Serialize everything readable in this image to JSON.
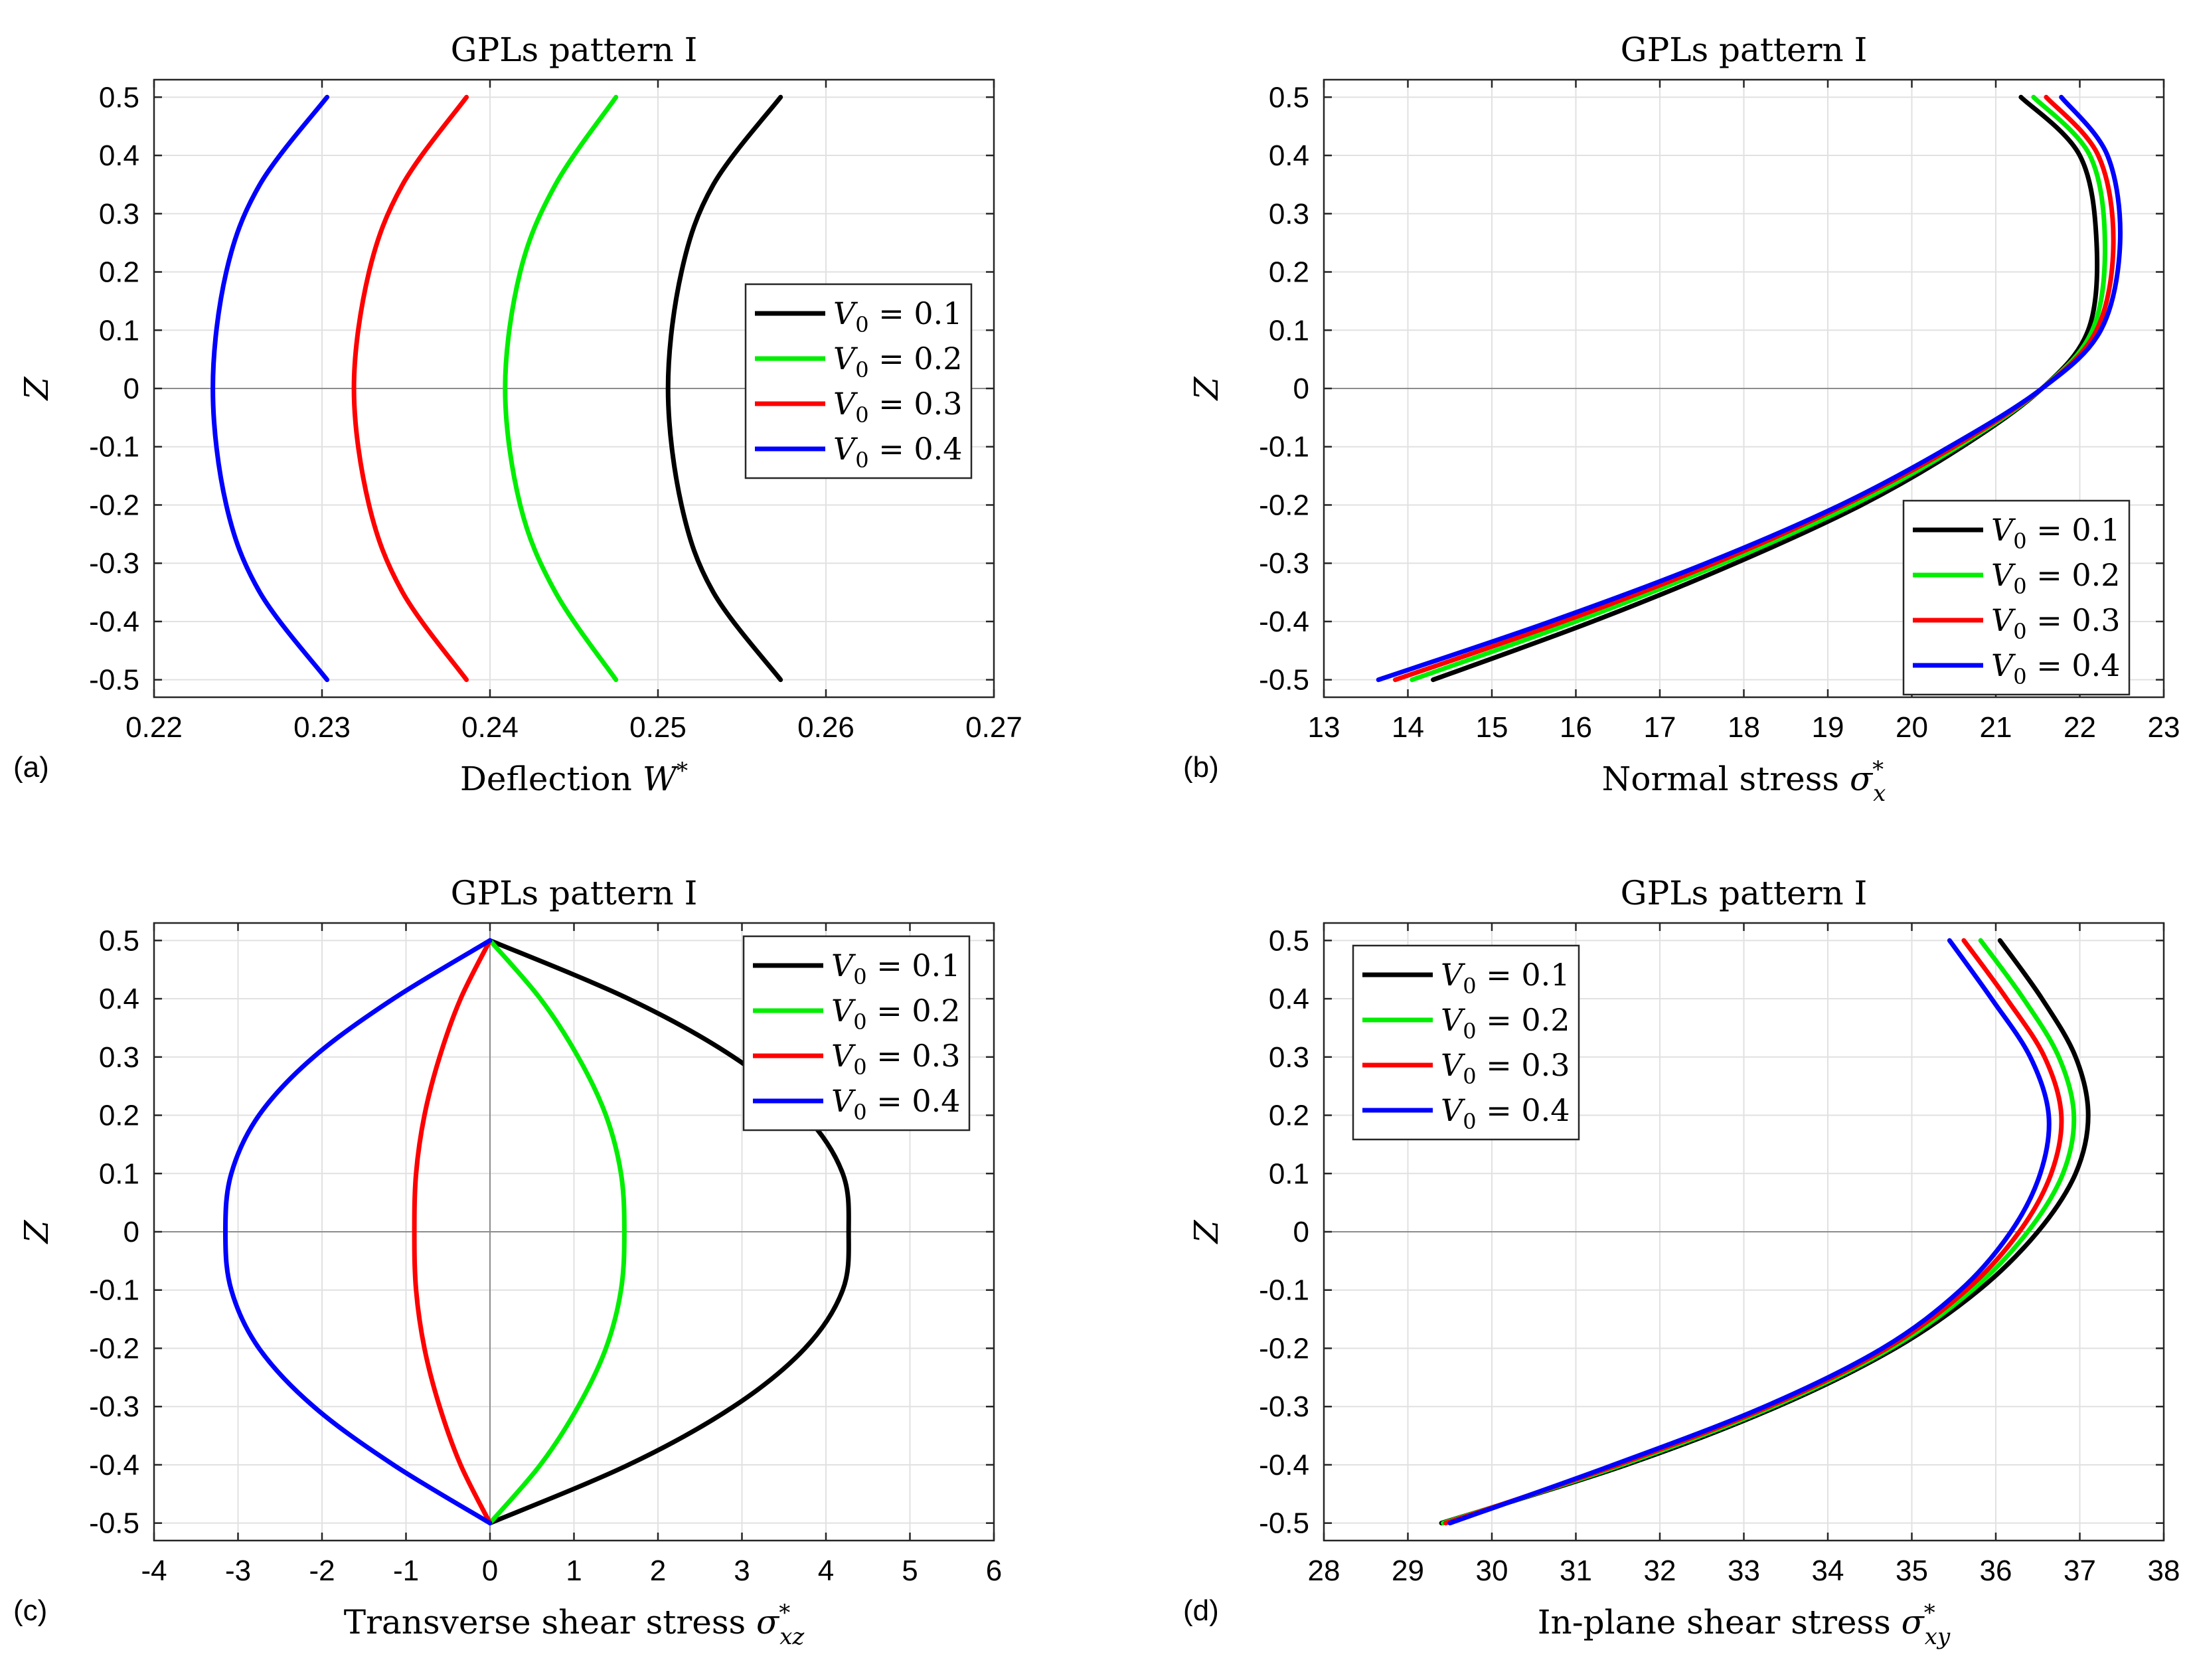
{
  "colors": {
    "black": "#000000",
    "green": "#00ee00",
    "red": "#ff0000",
    "blue": "#0000ff"
  },
  "chart_data": [
    {
      "id": "a",
      "type": "line",
      "title": "GPLs pattern I",
      "panel_label": "(a)",
      "xlabel": "Deflection",
      "xlabel_symbol": "W*",
      "ylabel": "Z",
      "xlim": [
        0.22,
        0.27
      ],
      "ylim": [
        -0.53,
        0.53
      ],
      "xticks": [
        0.22,
        0.23,
        0.24,
        0.25,
        0.26,
        0.27
      ],
      "xtick_labels": [
        "0.22",
        "0.23",
        "0.24",
        "0.25",
        "0.26",
        "0.27"
      ],
      "yticks": [
        -0.5,
        -0.4,
        -0.3,
        -0.2,
        -0.1,
        0,
        0.1,
        0.2,
        0.3,
        0.4,
        0.5
      ],
      "ytick_labels": [
        "-0.5",
        "-0.4",
        "-0.3",
        "-0.2",
        "-0.1",
        "0",
        "0.1",
        "0.2",
        "0.3",
        "0.4",
        "0.5"
      ],
      "zero_line": "horizontal",
      "legend_position": "right-middle",
      "series": [
        {
          "name": "V0 = 0.1",
          "label": "V₀ = 0.1",
          "color": "#000000",
          "x": [
            0.2573,
            0.2533,
            0.2514,
            0.2506,
            0.2514,
            0.2533,
            0.2573
          ],
          "y": [
            -0.5,
            -0.35,
            -0.2,
            0,
            0.2,
            0.35,
            0.5
          ]
        },
        {
          "name": "V0 = 0.2",
          "label": "V₀ = 0.2",
          "color": "#00ee00",
          "x": [
            0.2475,
            0.2439,
            0.2418,
            0.2409,
            0.2418,
            0.2439,
            0.2475
          ],
          "y": [
            -0.5,
            -0.35,
            -0.2,
            0,
            0.2,
            0.35,
            0.5
          ]
        },
        {
          "name": "V0 = 0.3",
          "label": "V₀ = 0.3",
          "color": "#ff0000",
          "x": [
            0.2386,
            0.2348,
            0.2328,
            0.2319,
            0.2328,
            0.2348,
            0.2386
          ],
          "y": [
            -0.5,
            -0.35,
            -0.2,
            0,
            0.2,
            0.35,
            0.5
          ]
        },
        {
          "name": "V0 = 0.4",
          "label": "V₀ = 0.4",
          "color": "#0000ff",
          "x": [
            0.2303,
            0.2263,
            0.2243,
            0.2235,
            0.2243,
            0.2263,
            0.2303
          ],
          "y": [
            -0.5,
            -0.35,
            -0.2,
            0,
            0.2,
            0.35,
            0.5
          ]
        }
      ]
    },
    {
      "id": "b",
      "type": "line",
      "title": "GPLs pattern I",
      "panel_label": "(b)",
      "xlabel": "Normal stress",
      "xlabel_symbol": "σ*x",
      "ylabel": "Z",
      "xlim": [
        13,
        23
      ],
      "ylim": [
        -0.53,
        0.53
      ],
      "xticks": [
        13,
        14,
        15,
        16,
        17,
        18,
        19,
        20,
        21,
        22,
        23
      ],
      "xtick_labels": [
        "13",
        "14",
        "15",
        "16",
        "17",
        "18",
        "19",
        "20",
        "21",
        "22",
        "23"
      ],
      "yticks": [
        -0.5,
        -0.4,
        -0.3,
        -0.2,
        -0.1,
        0,
        0.1,
        0.2,
        0.3,
        0.4,
        0.5
      ],
      "ytick_labels": [
        "-0.5",
        "-0.4",
        "-0.3",
        "-0.2",
        "-0.1",
        "0",
        "0.1",
        "0.2",
        "0.3",
        "0.4",
        "0.5"
      ],
      "zero_line": "horizontal",
      "legend_position": "bottom-right",
      "series": [
        {
          "name": "V0 = 0.1",
          "label": "V₀ = 0.1",
          "color": "#000000",
          "x": [
            14.3,
            16.2,
            17.9,
            19.4,
            20.6,
            21.55,
            22.1,
            22.2,
            22.0,
            21.3
          ],
          "y": [
            -0.5,
            -0.4,
            -0.3,
            -0.2,
            -0.1,
            0.0,
            0.1,
            0.25,
            0.4,
            0.5
          ]
        },
        {
          "name": "V0 = 0.2",
          "label": "V₀ = 0.2",
          "color": "#00ee00",
          "x": [
            14.05,
            16.0,
            17.75,
            19.3,
            20.55,
            21.55,
            22.15,
            22.3,
            22.12,
            21.45
          ],
          "y": [
            -0.5,
            -0.4,
            -0.3,
            -0.2,
            -0.1,
            0.0,
            0.1,
            0.25,
            0.4,
            0.5
          ]
        },
        {
          "name": "V0 = 0.3",
          "label": "V₀ = 0.3",
          "color": "#ff0000",
          "x": [
            13.85,
            15.85,
            17.65,
            19.2,
            20.5,
            21.55,
            22.2,
            22.4,
            22.22,
            21.6
          ],
          "y": [
            -0.5,
            -0.4,
            -0.3,
            -0.2,
            -0.1,
            0.0,
            0.1,
            0.25,
            0.4,
            0.5
          ]
        },
        {
          "name": "V0 = 0.4",
          "label": "V₀ = 0.4",
          "color": "#0000ff",
          "x": [
            13.65,
            15.7,
            17.55,
            19.15,
            20.45,
            21.55,
            22.25,
            22.48,
            22.33,
            21.78
          ],
          "y": [
            -0.5,
            -0.4,
            -0.3,
            -0.2,
            -0.1,
            0.0,
            0.1,
            0.25,
            0.4,
            0.5
          ]
        }
      ]
    },
    {
      "id": "c",
      "type": "line",
      "title": "GPLs pattern I",
      "panel_label": "(c)",
      "xlabel": "Transverse shear stress",
      "xlabel_symbol": "σ*xz",
      "ylabel": "Z",
      "xlim": [
        -4,
        6
      ],
      "ylim": [
        -0.53,
        0.53
      ],
      "xticks": [
        -4,
        -3,
        -2,
        -1,
        0,
        1,
        2,
        3,
        4,
        5,
        6
      ],
      "xtick_labels": [
        "-4",
        "-3",
        "-2",
        "-1",
        "0",
        "1",
        "2",
        "3",
        "4",
        "5",
        "6"
      ],
      "yticks": [
        -0.5,
        -0.4,
        -0.3,
        -0.2,
        -0.1,
        0,
        0.1,
        0.2,
        0.3,
        0.4,
        0.5
      ],
      "ytick_labels": [
        "-0.5",
        "-0.4",
        "-0.3",
        "-0.2",
        "-0.1",
        "0",
        "0.1",
        "0.2",
        "0.3",
        "0.4",
        "0.5"
      ],
      "zero_line": "both",
      "legend_position": "top-right",
      "series": [
        {
          "name": "V0 = 0.1",
          "label": "V₀ = 0.1",
          "color": "#000000",
          "x": [
            0,
            1.65,
            2.9,
            3.75,
            4.2,
            4.27,
            4.2,
            3.75,
            2.9,
            1.65,
            0
          ],
          "y": [
            -0.5,
            -0.4,
            -0.3,
            -0.2,
            -0.1,
            0,
            0.1,
            0.2,
            0.3,
            0.4,
            0.5
          ]
        },
        {
          "name": "V0 = 0.2",
          "label": "V₀ = 0.2",
          "color": "#00ee00",
          "x": [
            0,
            0.6,
            1.05,
            1.38,
            1.56,
            1.6,
            1.56,
            1.38,
            1.05,
            0.6,
            0
          ],
          "y": [
            -0.5,
            -0.4,
            -0.3,
            -0.2,
            -0.1,
            0,
            0.1,
            0.2,
            0.3,
            0.4,
            0.5
          ]
        },
        {
          "name": "V0 = 0.3",
          "label": "V₀ = 0.3",
          "color": "#ff0000",
          "x": [
            0,
            -0.35,
            -0.6,
            -0.78,
            -0.88,
            -0.9,
            -0.88,
            -0.78,
            -0.6,
            -0.35,
            0
          ],
          "y": [
            -0.5,
            -0.4,
            -0.3,
            -0.2,
            -0.1,
            0,
            0.1,
            0.2,
            0.3,
            0.4,
            0.5
          ]
        },
        {
          "name": "V0 = 0.4",
          "label": "V₀ = 0.4",
          "color": "#0000ff",
          "x": [
            0,
            -1.15,
            -2.1,
            -2.75,
            -3.08,
            -3.15,
            -3.08,
            -2.75,
            -2.1,
            -1.15,
            0
          ],
          "y": [
            -0.5,
            -0.4,
            -0.3,
            -0.2,
            -0.1,
            0,
            0.1,
            0.2,
            0.3,
            0.4,
            0.5
          ]
        }
      ]
    },
    {
      "id": "d",
      "type": "line",
      "title": "GPLs pattern I",
      "panel_label": "(d)",
      "xlabel": "In-plane shear stress",
      "xlabel_symbol": "σ*xy",
      "ylabel": "Z",
      "xlim": [
        28,
        38
      ],
      "ylim": [
        -0.53,
        0.53
      ],
      "xticks": [
        28,
        29,
        30,
        31,
        32,
        33,
        34,
        35,
        36,
        37,
        38
      ],
      "xtick_labels": [
        "28",
        "29",
        "30",
        "31",
        "32",
        "33",
        "34",
        "35",
        "36",
        "37",
        "38"
      ],
      "yticks": [
        -0.5,
        -0.4,
        -0.3,
        -0.2,
        -0.1,
        0,
        0.1,
        0.2,
        0.3,
        0.4,
        0.5
      ],
      "ytick_labels": [
        "-0.5",
        "-0.4",
        "-0.3",
        "-0.2",
        "-0.1",
        "0",
        "0.1",
        "0.2",
        "0.3",
        "0.4",
        "0.5"
      ],
      "zero_line": "horizontal",
      "legend_position": "top-left",
      "series": [
        {
          "name": "V0 = 0.1",
          "label": "V₀ = 0.1",
          "color": "#000000",
          "x": [
            29.4,
            31.6,
            33.4,
            34.8,
            35.8,
            36.5,
            36.95,
            37.1,
            36.95,
            36.55,
            36.05
          ],
          "y": [
            -0.5,
            -0.4,
            -0.3,
            -0.2,
            -0.1,
            0.0,
            0.1,
            0.2,
            0.3,
            0.4,
            0.5
          ]
        },
        {
          "name": "V0 = 0.2",
          "label": "V₀ = 0.2",
          "color": "#00ee00",
          "x": [
            29.42,
            31.55,
            33.35,
            34.75,
            35.72,
            36.38,
            36.8,
            36.93,
            36.75,
            36.33,
            35.82
          ],
          "y": [
            -0.5,
            -0.4,
            -0.3,
            -0.2,
            -0.1,
            0.0,
            0.1,
            0.2,
            0.3,
            0.4,
            0.5
          ]
        },
        {
          "name": "V0 = 0.3",
          "label": "V₀ = 0.3",
          "color": "#ff0000",
          "x": [
            29.45,
            31.5,
            33.3,
            34.7,
            35.65,
            36.28,
            36.66,
            36.78,
            36.58,
            36.13,
            35.62
          ],
          "y": [
            -0.5,
            -0.4,
            -0.3,
            -0.2,
            -0.1,
            0.0,
            0.1,
            0.2,
            0.3,
            0.4,
            0.5
          ]
        },
        {
          "name": "V0 = 0.4",
          "label": "V₀ = 0.4",
          "color": "#0000ff",
          "x": [
            29.5,
            31.45,
            33.25,
            34.65,
            35.58,
            36.18,
            36.53,
            36.63,
            36.41,
            35.95,
            35.45
          ],
          "y": [
            -0.5,
            -0.4,
            -0.3,
            -0.2,
            -0.1,
            0.0,
            0.1,
            0.2,
            0.3,
            0.4,
            0.5
          ]
        }
      ]
    }
  ]
}
